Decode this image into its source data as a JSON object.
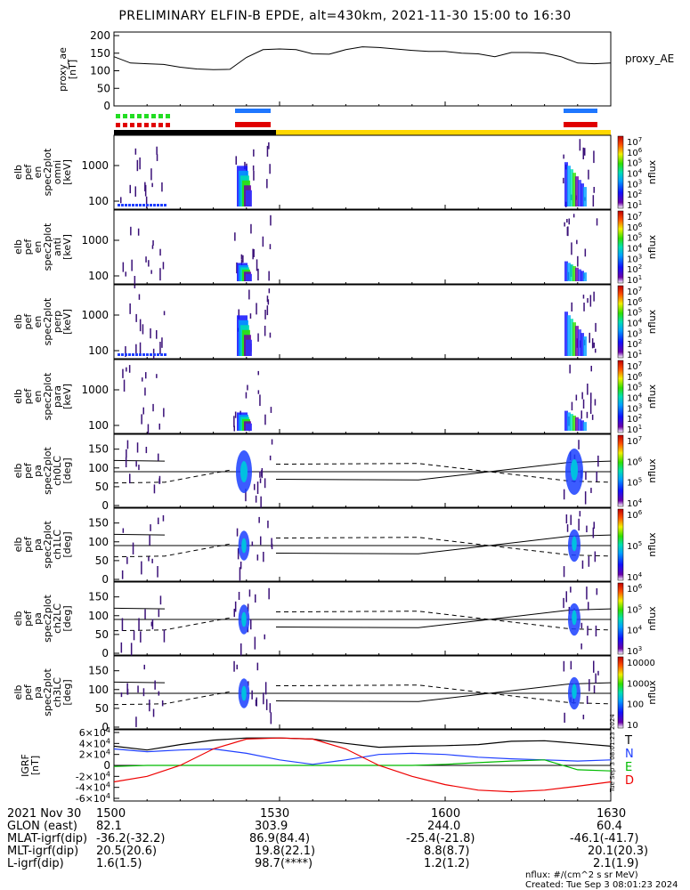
{
  "title": "PRELIMINARY ELFIN-B EPDE, alt=430km, 2021-11-30 15:00 to 16:30",
  "colors": {
    "accent_blue": "#1f77ff",
    "red": "#e00000",
    "green": "#00dd00",
    "yellow": "#ffd700",
    "black": "#000000"
  },
  "chart_data": [
    {
      "type": "line",
      "panel": "proxy_ae",
      "ylabel": [
        "proxy_ae",
        "[nT]"
      ],
      "legend": "proxy_AE",
      "yticks": [
        "200",
        "150",
        "100",
        "50",
        "0"
      ],
      "ylim": [
        0,
        200
      ],
      "x": [
        15.0,
        15.05,
        15.1,
        15.15,
        15.2,
        15.25,
        15.3,
        15.35,
        15.4,
        15.45,
        15.5,
        15.55,
        15.6,
        15.65,
        15.7,
        15.75,
        15.8,
        15.85,
        15.9,
        15.95,
        16.0,
        16.05,
        16.1,
        16.15,
        16.2,
        16.25,
        16.3,
        16.35,
        16.4,
        16.45,
        16.5
      ],
      "values": [
        140,
        122,
        120,
        118,
        110,
        105,
        103,
        104,
        138,
        160,
        162,
        160,
        148,
        147,
        160,
        168,
        166,
        162,
        158,
        155,
        155,
        150,
        148,
        140,
        152,
        152,
        150,
        140,
        122,
        120,
        122
      ]
    },
    {
      "type": "heatmap",
      "panel": "spectrogram",
      "ylabel": [
        "elb",
        "pef",
        "en",
        "spec2plot",
        "omni",
        "[keV]"
      ],
      "yticks": [
        "1000",
        "100"
      ],
      "colorbar": "nflux",
      "colorbar_ticks": [
        "10^7",
        "10^6",
        "10^5",
        "10^4",
        "10^3",
        "10^2",
        "10^1"
      ]
    },
    {
      "type": "heatmap",
      "panel": "spectrogram",
      "ylabel": [
        "elb",
        "pef",
        "en",
        "spec2plot",
        "anti",
        "[keV]"
      ],
      "yticks": [
        "1000",
        "100"
      ],
      "colorbar": "nflux",
      "colorbar_ticks": [
        "10^7",
        "10^6",
        "10^5",
        "10^4",
        "10^3",
        "10^2",
        "10^1"
      ]
    },
    {
      "type": "heatmap",
      "panel": "spectrogram",
      "ylabel": [
        "elb",
        "pef",
        "en",
        "spec2plot",
        "perp",
        "[keV]"
      ],
      "yticks": [
        "1000",
        "100"
      ],
      "colorbar": "nflux",
      "colorbar_ticks": [
        "10^7",
        "10^6",
        "10^5",
        "10^4",
        "10^3",
        "10^2",
        "10^1"
      ]
    },
    {
      "type": "heatmap",
      "panel": "spectrogram",
      "ylabel": [
        "elb",
        "pef",
        "en",
        "spec2plot",
        "para",
        "[keV]"
      ],
      "yticks": [
        "1000",
        "100"
      ],
      "colorbar": "nflux",
      "colorbar_ticks": [
        "10^7",
        "10^6",
        "10^5",
        "10^4",
        "10^3",
        "10^2",
        "10^1"
      ]
    },
    {
      "type": "heatmap",
      "panel": "pitch",
      "ylabel": [
        "elb",
        "pef",
        "pa",
        "spec2plot",
        "ch0LC",
        "[deg]"
      ],
      "yticks": [
        "150",
        "100",
        "50",
        "0"
      ],
      "ylim": [
        0,
        180
      ],
      "colorbar": "nflux",
      "colorbar_ticks": [
        "10^7",
        "10^6",
        "10^5",
        "10^4"
      ]
    },
    {
      "type": "heatmap",
      "panel": "pitch",
      "ylabel": [
        "elb",
        "pef",
        "pa",
        "spec2plot",
        "ch1LC",
        "[deg]"
      ],
      "yticks": [
        "150",
        "100",
        "50",
        "0"
      ],
      "ylim": [
        0,
        180
      ],
      "colorbar": "nflux",
      "colorbar_ticks": [
        "10^6",
        "10^5",
        "10^4"
      ]
    },
    {
      "type": "heatmap",
      "panel": "pitch",
      "ylabel": [
        "elb",
        "pef",
        "pa",
        "spec2plot",
        "ch2LC",
        "[deg]"
      ],
      "yticks": [
        "150",
        "100",
        "50",
        "0"
      ],
      "ylim": [
        0,
        180
      ],
      "colorbar": "nflux",
      "colorbar_ticks": [
        "10^6",
        "10^5",
        "10^4",
        "10^3"
      ]
    },
    {
      "type": "heatmap",
      "panel": "pitch",
      "ylabel": [
        "elb",
        "pef",
        "pa",
        "spec2plot",
        "ch3LC",
        "[deg]"
      ],
      "yticks": [
        "150",
        "100",
        "50",
        "0"
      ],
      "ylim": [
        0,
        180
      ],
      "colorbar": "nflux",
      "colorbar_ticks": [
        "10000",
        "1000",
        "100",
        "10"
      ]
    },
    {
      "type": "line",
      "panel": "igrf",
      "ylabel": [
        "IGRF",
        "[nT]"
      ],
      "yticks": [
        "6x10^4",
        "4x10^4",
        "2x10^4",
        "0",
        "-2x10^4",
        "-4x10^4",
        "-6x10^4"
      ],
      "ylim": [
        -60000,
        60000
      ],
      "legend": [
        "T",
        "N",
        "E",
        "D"
      ],
      "x": [
        15.0,
        15.1,
        15.2,
        15.3,
        15.4,
        15.5,
        15.6,
        15.7,
        15.8,
        15.9,
        16.0,
        16.1,
        16.2,
        16.3,
        16.4,
        16.5
      ],
      "series": [
        {
          "name": "T",
          "color": "#000000",
          "values": [
            35000,
            28000,
            38000,
            46000,
            50000,
            50000,
            48000,
            40000,
            33000,
            35000,
            36000,
            38000,
            44000,
            45000,
            40000,
            35000
          ]
        },
        {
          "name": "N",
          "color": "#1f3fff",
          "values": [
            30000,
            25000,
            28000,
            30000,
            22000,
            10000,
            2000,
            10000,
            20000,
            22000,
            20000,
            15000,
            12000,
            10000,
            8000,
            10000
          ]
        },
        {
          "name": "E",
          "color": "#00bb00",
          "values": [
            -2000,
            0,
            0,
            0,
            0,
            0,
            0,
            0,
            0,
            0,
            2000,
            5000,
            8000,
            10000,
            -8000,
            -10000
          ]
        },
        {
          "name": "D",
          "color": "#ee0000",
          "values": [
            -30000,
            -20000,
            0,
            30000,
            48000,
            50000,
            48000,
            30000,
            0,
            -20000,
            -35000,
            -45000,
            -48000,
            -45000,
            -38000,
            -30000
          ]
        }
      ]
    }
  ],
  "footer": {
    "rows": [
      {
        "label": "2021 Nov 30",
        "values": [
          "1500",
          "1530",
          "1600",
          "1630"
        ]
      },
      {
        "label": "GLON (east)",
        "values": [
          "82.1",
          "303.9",
          "244.0",
          "60.4"
        ]
      },
      {
        "label": "MLAT-igrf(dip)",
        "values": [
          "-36.2(-32.2)",
          "86.9(84.4)",
          "-25.4(-21.8)",
          "-46.1(-41.7)"
        ]
      },
      {
        "label": "MLT-igrf(dip)",
        "values": [
          "20.5(20.6)",
          "19.8(22.1)",
          "8.8(8.7)",
          "20.1(20.3)"
        ]
      },
      {
        "label": "L-igrf(dip)",
        "values": [
          "1.6(1.5)",
          "98.7(****)",
          "1.2(1.2)",
          "2.1(1.9)"
        ]
      }
    ],
    "units_note": "nflux: #/(cm^2 s sr MeV)",
    "created": "Created: Tue Sep  3 08:01:23 2024",
    "side_stamp": "Tue Sep  3 08:01:23 2024"
  }
}
